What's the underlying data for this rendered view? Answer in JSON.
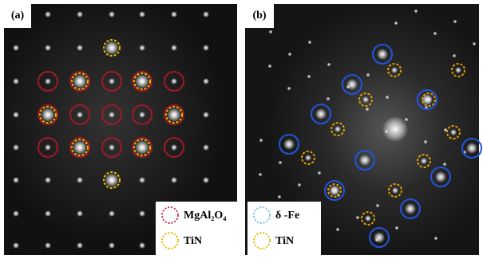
{
  "panels": [
    {
      "label": "(a)",
      "legend": [
        "MgAl₂O₄",
        "TiN"
      ]
    },
    {
      "label": "(b)",
      "legend": [
        "δ -Fe",
        "TiN"
      ]
    }
  ]
}
